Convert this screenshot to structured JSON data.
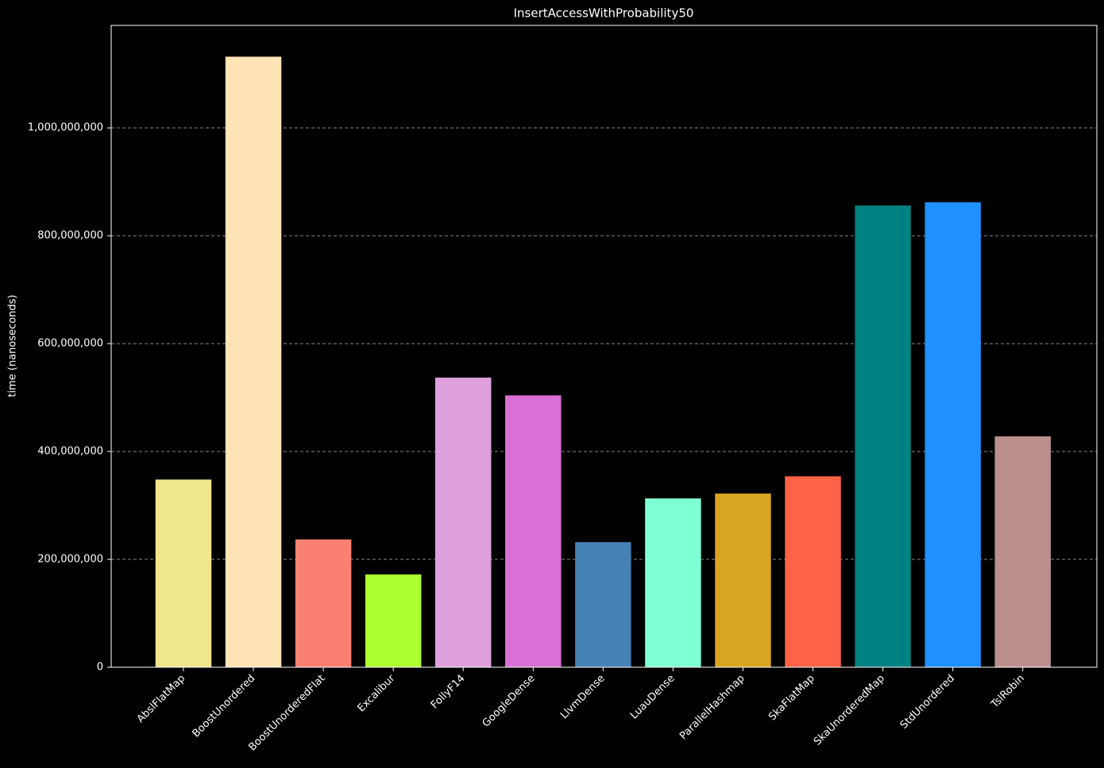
{
  "chart_data": {
    "type": "bar",
    "title": "InsertAccessWithProbability50",
    "y_label": "time (nanoseconds)",
    "categories": [
      "AbslFlatMap",
      "BoostUnordered",
      "BoostUnorderedFlat",
      "Excalibur",
      "FollyF14",
      "GoogleDense",
      "LlvmDense",
      "LuauDense",
      "ParallelHashmap",
      "SkaFlatMap",
      "SkaUnorderedMap",
      "StdUnordered",
      "TslRobin"
    ],
    "values": [
      348000000,
      1132000000,
      237000000,
      172000000,
      537000000,
      504000000,
      232000000,
      313000000,
      322000000,
      354000000,
      856000000,
      862000000,
      428000000
    ],
    "colors": [
      "#f0e68c",
      "#ffe4b5",
      "#fa8072",
      "#adff2f",
      "#dda0dd",
      "#da70d6",
      "#4682b4",
      "#7fffd4",
      "#daa520",
      "#ff6347",
      "#008080",
      "#1e90ff",
      "#bc8f8f"
    ],
    "ylim": [
      0,
      1190000000
    ],
    "yticks": [
      0,
      {
        "value": 200000000,
        "label": "200,000,000"
      },
      {
        "value": 400000000,
        "label": "400,000,000"
      },
      {
        "value": 600000000,
        "label": "600,000,000"
      },
      {
        "value": 800000000,
        "label": "800,000,000"
      },
      {
        "value": 1000000000,
        "label": "1,000,000,000"
      }
    ],
    "grid": true
  }
}
